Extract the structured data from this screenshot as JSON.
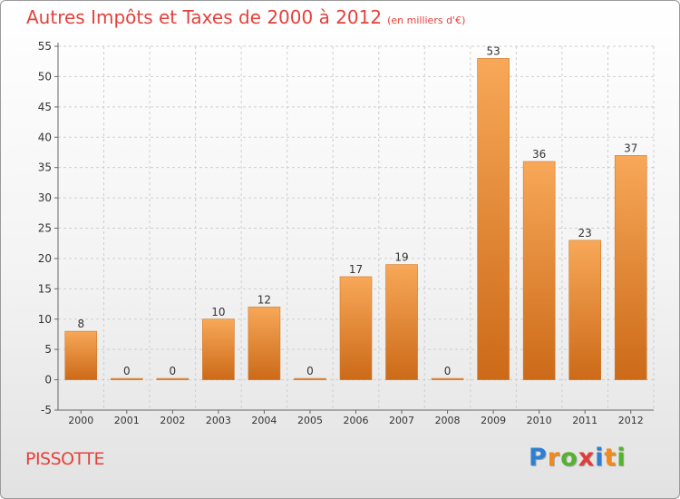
{
  "title": "Autres Impôts et Taxes de 2000 à 2012",
  "subtitle": "(en milliers d'€)",
  "city": "PISSOTTE",
  "logo": {
    "text": "Proxiti",
    "letters": [
      {
        "ch": "P",
        "color": "#2f7fd0"
      },
      {
        "ch": "r",
        "color": "#f08a1c"
      },
      {
        "ch": "o",
        "color": "#55b22f"
      },
      {
        "ch": "x",
        "color": "#e23b3b"
      },
      {
        "ch": "i",
        "color": "#2f7fd0"
      },
      {
        "ch": "t",
        "color": "#f08a1c"
      },
      {
        "ch": "i",
        "color": "#55b22f"
      }
    ]
  },
  "colors": {
    "title": "#e4423c",
    "bar_light": "#f7a858",
    "bar_dark": "#cc6a18",
    "axis": "#666666",
    "grid": "#cfcfcf"
  },
  "chart_data": {
    "type": "bar",
    "categories": [
      "2000",
      "2001",
      "2002",
      "2003",
      "2004",
      "2005",
      "2006",
      "2007",
      "2008",
      "2009",
      "2010",
      "2011",
      "2012"
    ],
    "values": [
      8,
      0,
      0,
      10,
      12,
      0,
      17,
      19,
      0,
      53,
      36,
      23,
      37
    ],
    "title": "Autres Impôts et Taxes de 2000 à 2012",
    "subtitle": "(en milliers d'€)",
    "ylim": [
      -5,
      55
    ],
    "yticks": [
      -5,
      0,
      5,
      10,
      15,
      20,
      25,
      30,
      35,
      40,
      45,
      50,
      55
    ],
    "grid": true,
    "legend": "none"
  }
}
